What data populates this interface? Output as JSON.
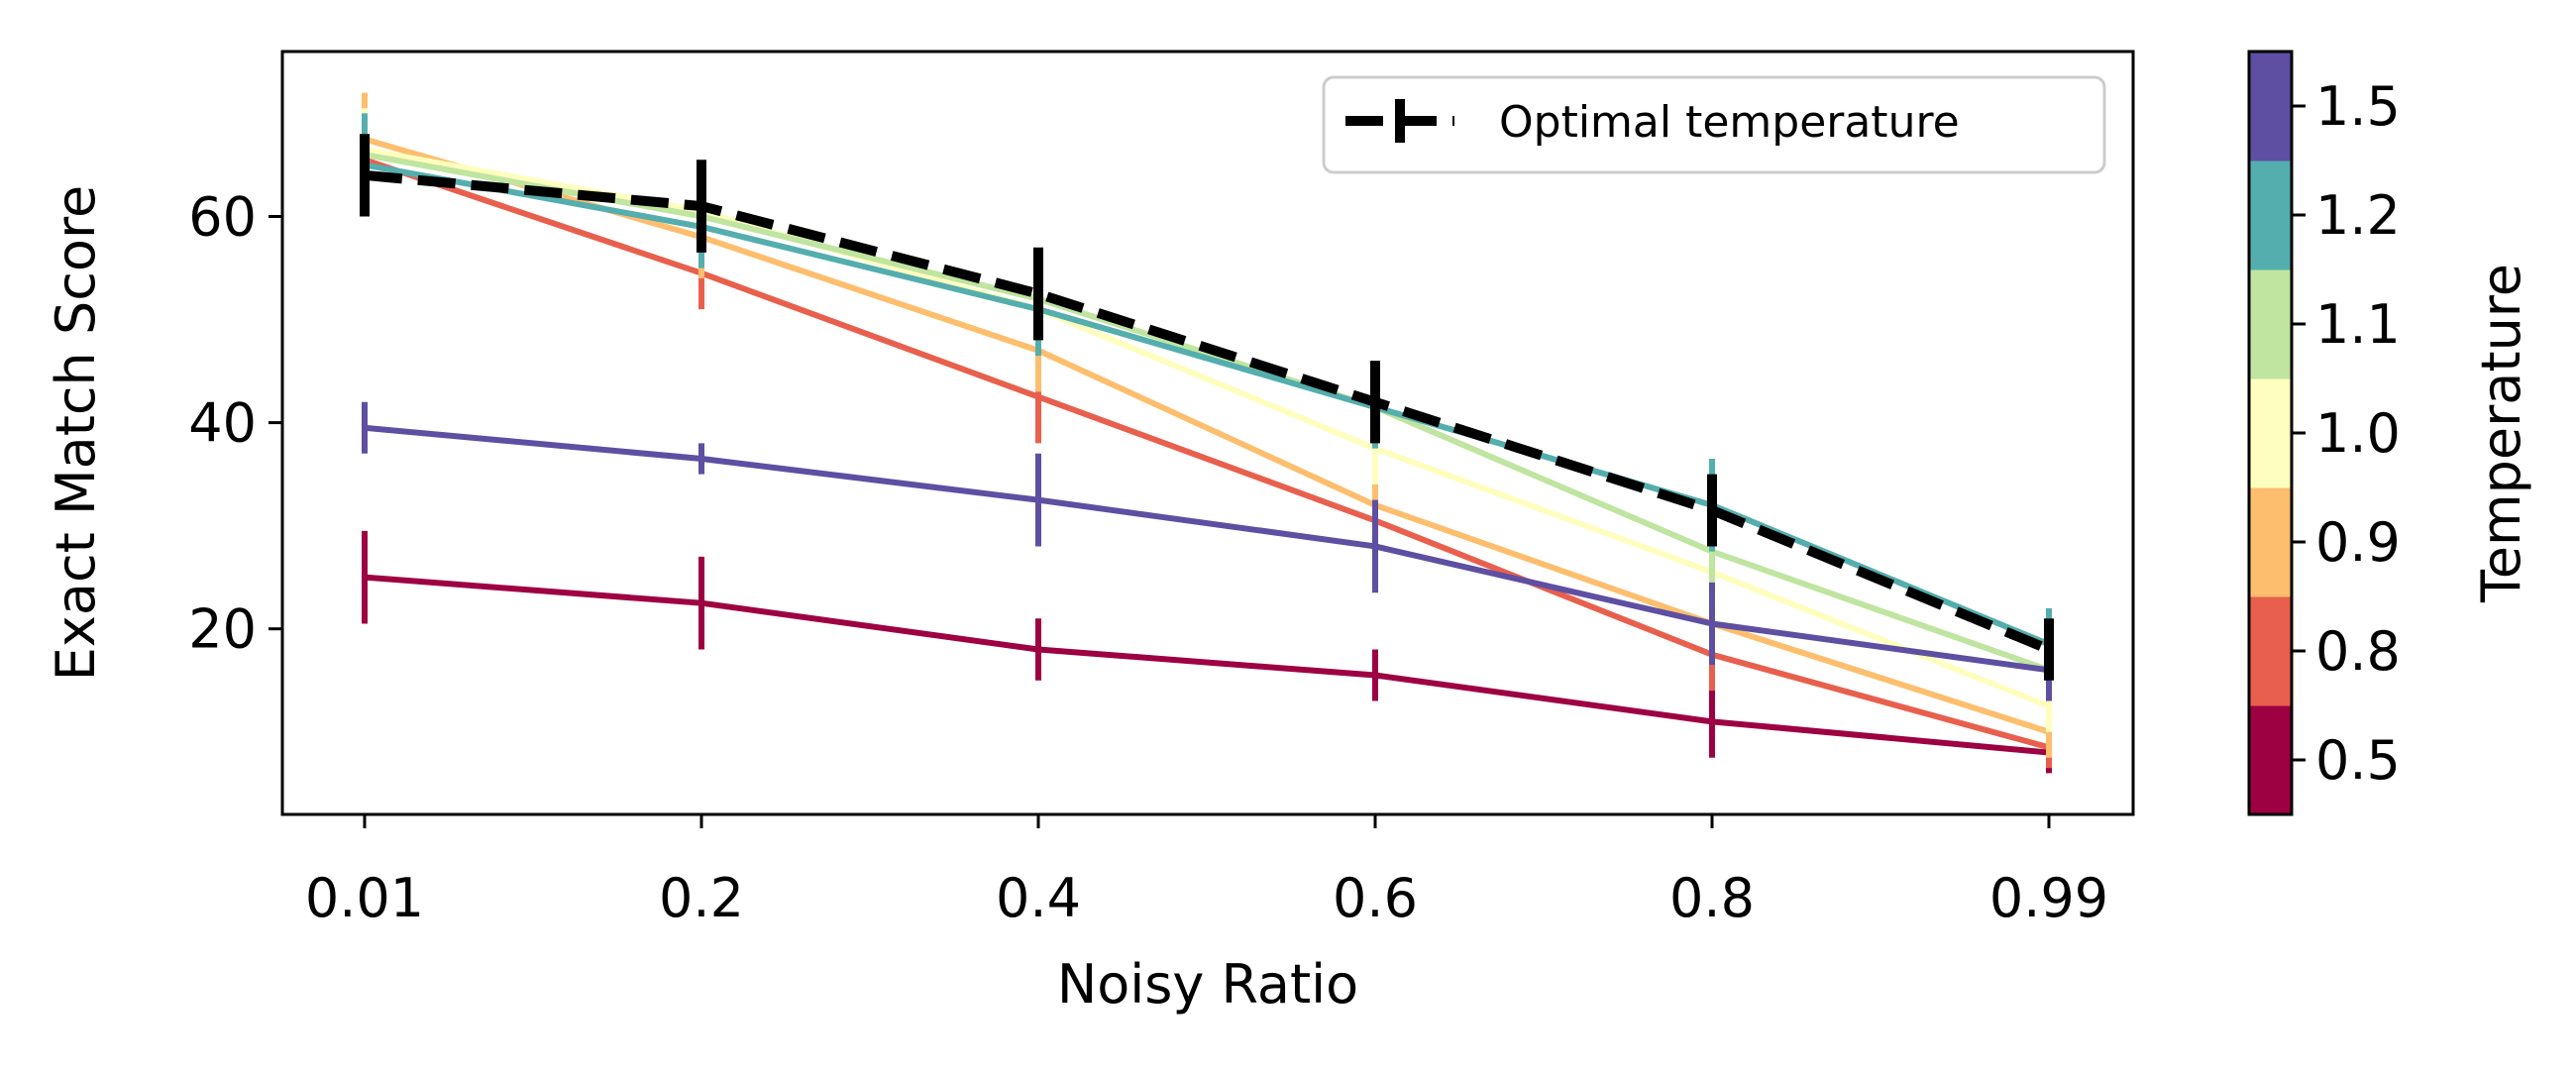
{
  "chart_data": {
    "type": "line",
    "title": "",
    "xlabel": "Noisy Ratio",
    "ylabel": "Exact Match Score",
    "categories": [
      "0.01",
      "0.2",
      "0.4",
      "0.6",
      "0.8",
      "0.99"
    ],
    "yticks": [
      20,
      40,
      60
    ],
    "ylim": [
      2,
      76
    ],
    "series": [
      {
        "name": "0.5",
        "temperature": 0.5,
        "color": "#9e0142",
        "values": [
          25.0,
          22.5,
          18.0,
          15.5,
          11.0,
          8.0
        ],
        "errors": [
          4.5,
          4.5,
          3.0,
          2.5,
          3.5,
          2.0
        ]
      },
      {
        "name": "0.8",
        "temperature": 0.8,
        "color": "#e8604d",
        "values": [
          65.5,
          54.5,
          42.5,
          30.5,
          17.5,
          8.5
        ],
        "errors": [
          4.0,
          3.5,
          4.5,
          3.0,
          3.5,
          2.0
        ]
      },
      {
        "name": "0.9",
        "temperature": 0.9,
        "color": "#fdbe6e",
        "values": [
          67.5,
          58.0,
          47.0,
          32.0,
          20.5,
          10.0
        ],
        "errors": [
          4.5,
          4.0,
          4.0,
          3.5,
          4.0,
          2.5
        ]
      },
      {
        "name": "1.0",
        "temperature": 1.0,
        "color": "#fefebe",
        "values": [
          66.5,
          60.5,
          51.0,
          37.5,
          25.5,
          12.5
        ],
        "errors": [
          4.0,
          4.0,
          4.0,
          3.5,
          3.5,
          2.5
        ]
      },
      {
        "name": "1.1",
        "temperature": 1.1,
        "color": "#bfe5a0",
        "values": [
          66.0,
          60.0,
          52.0,
          41.5,
          27.5,
          16.0
        ],
        "errors": [
          4.0,
          3.5,
          4.0,
          3.5,
          4.0,
          3.0
        ]
      },
      {
        "name": "1.2",
        "temperature": 1.2,
        "color": "#54aead",
        "values": [
          65.0,
          59.0,
          51.0,
          41.5,
          32.0,
          18.5
        ],
        "errors": [
          5.0,
          4.0,
          4.5,
          4.0,
          4.5,
          3.5
        ]
      },
      {
        "name": "1.5",
        "temperature": 1.5,
        "color": "#5e4fa2",
        "values": [
          39.5,
          36.5,
          32.5,
          28.0,
          20.5,
          16.0
        ],
        "errors": [
          2.5,
          1.5,
          4.5,
          4.5,
          4.0,
          3.0
        ]
      }
    ],
    "optimal": {
      "name": "Optimal temperature",
      "color": "#000000",
      "values": [
        64.0,
        61.0,
        52.5,
        42.0,
        31.5,
        18.0
      ],
      "errors": [
        4.0,
        4.5,
        4.5,
        4.0,
        3.5,
        3.0
      ]
    },
    "legend": {
      "position": "top-right",
      "entries": [
        "Optimal temperature"
      ]
    },
    "colorbar": {
      "label": "Temperature",
      "ticks": [
        "0.5",
        "0.8",
        "0.9",
        "1.0",
        "1.1",
        "1.2",
        "1.5"
      ],
      "colors": [
        "#9e0142",
        "#e8604d",
        "#fdbe6e",
        "#fefebe",
        "#bfe5a0",
        "#54aead",
        "#5e4fa2"
      ]
    },
    "grid": false
  }
}
